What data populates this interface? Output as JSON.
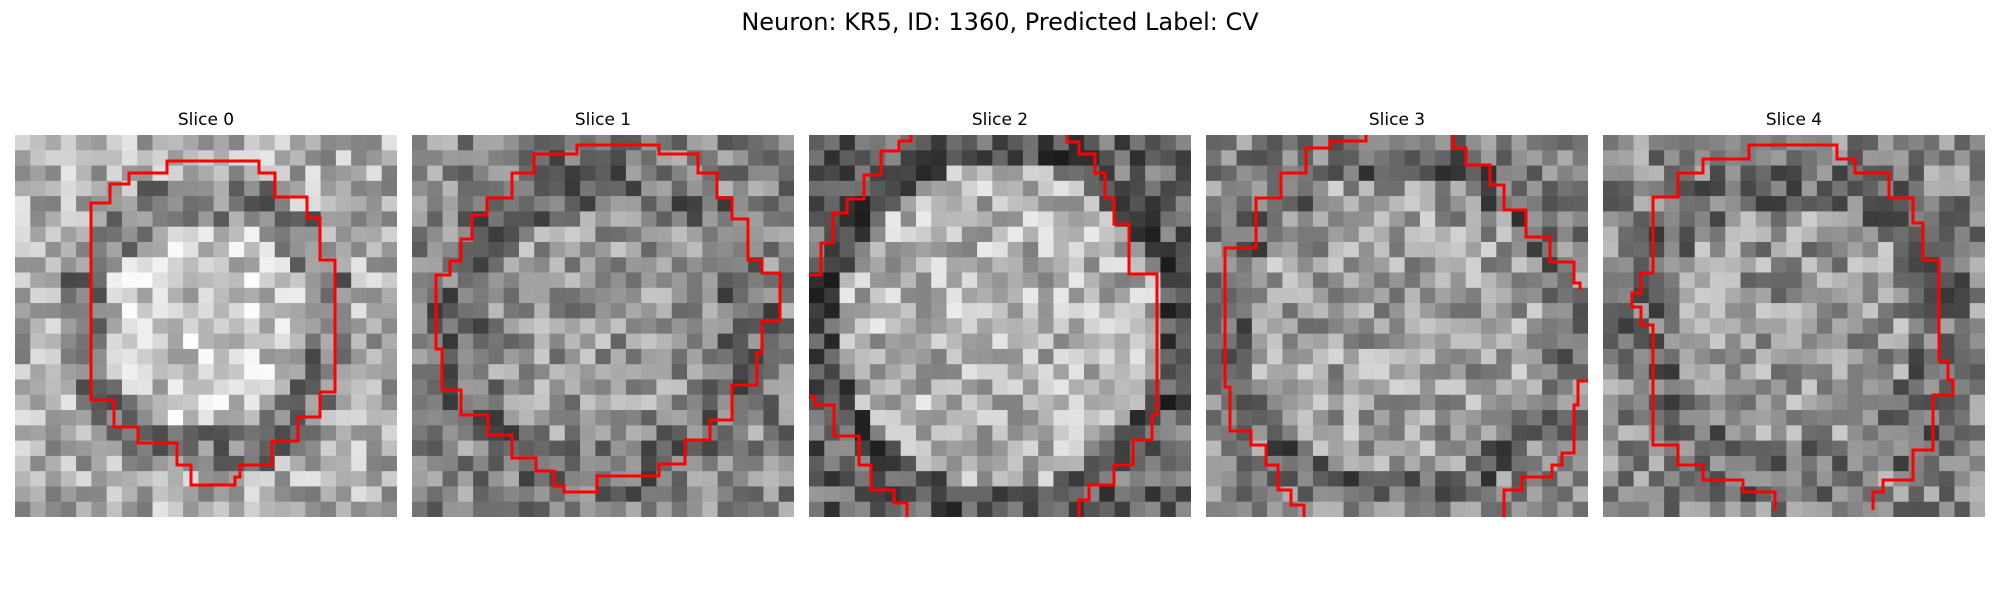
{
  "figure": {
    "title": "Neuron: KR5, ID: 1360, Predicted Label: CV",
    "contour_color": "#ff0000"
  },
  "panels": [
    {
      "title": "Slice 0",
      "style": "blob"
    },
    {
      "title": "Slice 1",
      "style": "ring"
    },
    {
      "title": "Slice 2",
      "style": "bright"
    },
    {
      "title": "Slice 3",
      "style": "noisy"
    },
    {
      "title": "Slice 4",
      "style": "ring"
    }
  ]
}
